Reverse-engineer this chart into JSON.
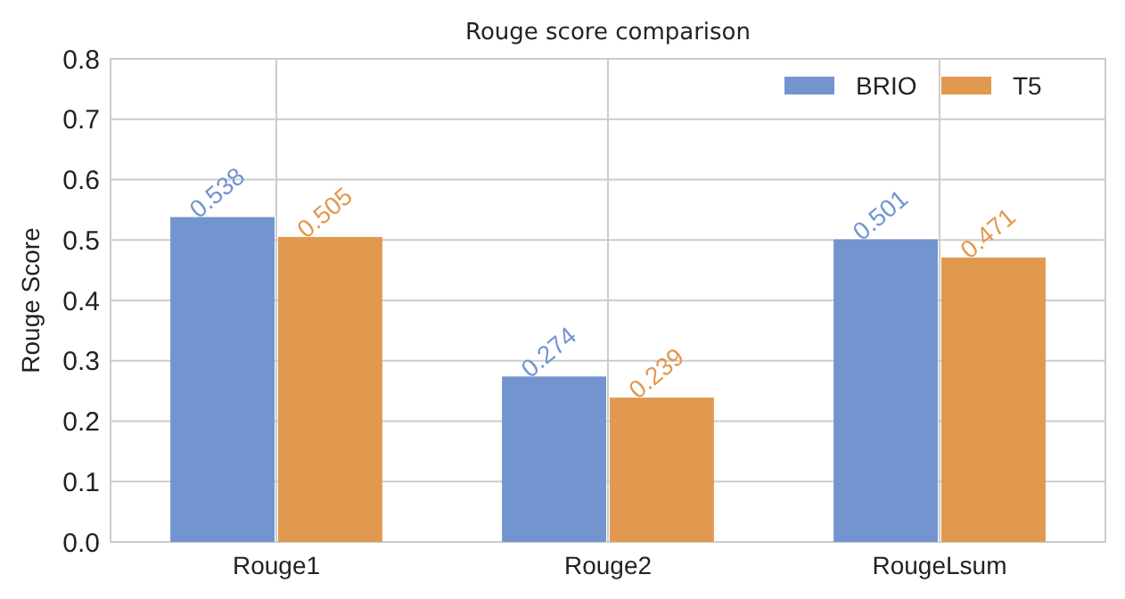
{
  "chart_data": {
    "type": "bar",
    "title": "Rouge score comparison",
    "ylabel": "Rouge Score",
    "categories": [
      "Rouge1",
      "Rouge2",
      "RougeLsum"
    ],
    "series": [
      {
        "name": "BRIO",
        "color": "#7295cf",
        "values": [
          0.538,
          0.274,
          0.501
        ]
      },
      {
        "name": "T5",
        "color": "#e1994f",
        "values": [
          0.505,
          0.239,
          0.471
        ]
      }
    ],
    "ylim": [
      0,
      0.8
    ],
    "yticks": [
      {
        "value": 0,
        "label": "0.0"
      },
      0.1,
      0.2,
      0.3,
      0.4,
      0.5,
      0.6,
      0.7,
      0.8
    ],
    "grid": true,
    "legend": "top right",
    "data_labels": true
  }
}
